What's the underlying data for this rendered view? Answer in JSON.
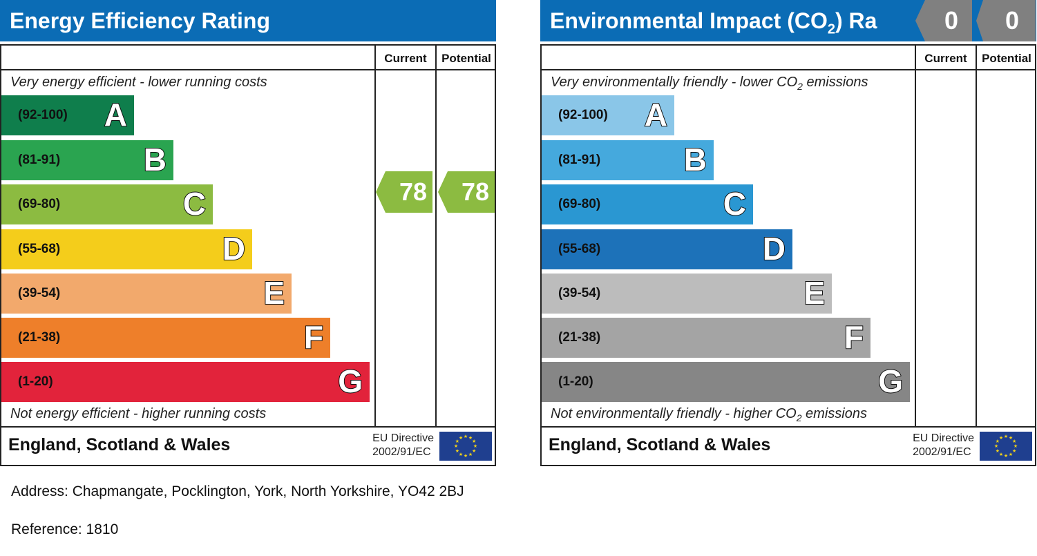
{
  "energy": {
    "title": "Energy Efficiency Rating",
    "current_label": "Current",
    "potential_label": "Potential",
    "top_caption": "Very energy efficient - lower running costs",
    "bottom_caption": "Not energy efficient - higher running costs",
    "region": "England, Scotland & Wales",
    "eu_line1": "EU Directive",
    "eu_line2": "2002/91/EC",
    "current_value": "78",
    "potential_value": "78",
    "current_color": "#8cbb41",
    "potential_color": "#8cbb41",
    "bands": [
      {
        "range": "(92-100)",
        "letter": "A",
        "color": "#0f7e4c"
      },
      {
        "range": "(81-91)",
        "letter": "B",
        "color": "#2aa450"
      },
      {
        "range": "(69-80)",
        "letter": "C",
        "color": "#8cbb41"
      },
      {
        "range": "(55-68)",
        "letter": "D",
        "color": "#f4cd1b"
      },
      {
        "range": "(39-54)",
        "letter": "E",
        "color": "#f2a96c"
      },
      {
        "range": "(21-38)",
        "letter": "F",
        "color": "#ee7f2a"
      },
      {
        "range": "(1-20)",
        "letter": "G",
        "color": "#e2233b"
      }
    ]
  },
  "environment": {
    "title_main": "Environmental Impact (CO",
    "title_sub": "2",
    "title_tail": ") Ra",
    "current_label": "Current",
    "potential_label": "Potential",
    "top_caption_main": "Very environmentally friendly - lower CO",
    "top_caption_sub": "2",
    "top_caption_tail": " emissions",
    "bottom_caption_main": "Not environmentally friendly - higher CO",
    "bottom_caption_sub": "2",
    "bottom_caption_tail": " emissions",
    "region": "England, Scotland & Wales",
    "eu_line1": "EU Directive",
    "eu_line2": "2002/91/EC",
    "current_value": "0",
    "potential_value": "0",
    "marker_color": "#808080",
    "bands": [
      {
        "range": "(92-100)",
        "letter": "A",
        "color": "#8ac6e8"
      },
      {
        "range": "(81-91)",
        "letter": "B",
        "color": "#45a9dd"
      },
      {
        "range": "(69-80)",
        "letter": "C",
        "color": "#2a97d2"
      },
      {
        "range": "(55-68)",
        "letter": "D",
        "color": "#1d72b9"
      },
      {
        "range": "(39-54)",
        "letter": "E",
        "color": "#bcbcbc"
      },
      {
        "range": "(21-38)",
        "letter": "F",
        "color": "#a4a4a4"
      },
      {
        "range": "(1-20)",
        "letter": "G",
        "color": "#868686"
      }
    ]
  },
  "info": {
    "address": "Address: Chapmangate, Pocklington, York, North Yorkshire, YO42 2BJ",
    "reference": "Reference: 1810"
  }
}
